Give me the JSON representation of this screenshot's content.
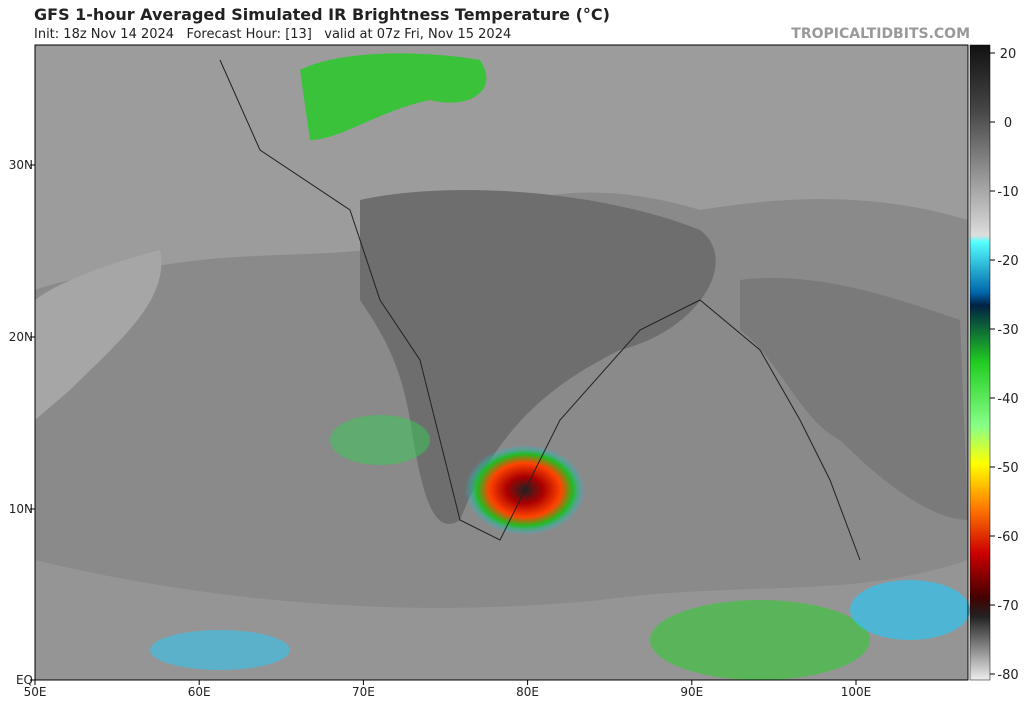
{
  "header": {
    "title": "GFS 1-hour Averaged Simulated IR Brightness Temperature (°C)",
    "subtitle": "Init: 18z Nov 14 2024   Forecast Hour: [13]   valid at 07z Fri, Nov 15 2024",
    "credit": "TROPICALTIDBITS.COM"
  },
  "map": {
    "lat_labels": [
      "30N",
      "20N",
      "10N",
      "EQ"
    ],
    "lon_labels": [
      "50E",
      "60E",
      "70E",
      "80E",
      "90E",
      "100E"
    ]
  },
  "colorbar": {
    "ticks": [
      20,
      0,
      -10,
      -20,
      -30,
      -40,
      -50,
      -60,
      -70,
      -80
    ]
  }
}
